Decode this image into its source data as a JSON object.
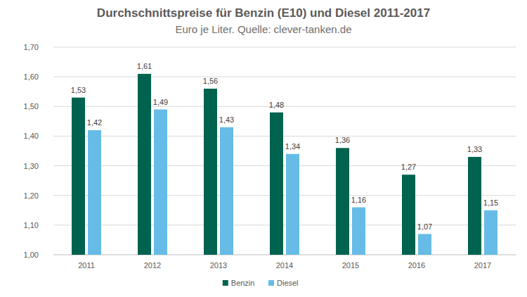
{
  "chart_data": {
    "type": "bar",
    "title": "Durchschnittspreise für Benzin (E10) und Diesel 2011-2017",
    "subtitle": "Euro je Liter. Quelle: clever-tanken.de",
    "categories": [
      "2011",
      "2012",
      "2013",
      "2014",
      "2015",
      "2016",
      "2017"
    ],
    "series": [
      {
        "name": "Benzin",
        "color": "#00634f",
        "values": [
          1.53,
          1.61,
          1.56,
          1.48,
          1.36,
          1.27,
          1.33
        ],
        "value_labels": [
          "1,53",
          "1,61",
          "1,56",
          "1,48",
          "1,36",
          "1,27",
          "1,33"
        ]
      },
      {
        "name": "Diesel",
        "color": "#66bce7",
        "values": [
          1.42,
          1.49,
          1.43,
          1.34,
          1.16,
          1.07,
          1.15
        ],
        "value_labels": [
          "1,42",
          "1,49",
          "1,43",
          "1,34",
          "1,16",
          "1,07",
          "1,15"
        ]
      }
    ],
    "ylim": [
      1.0,
      1.7
    ],
    "yticks": [
      {
        "value": 1.0,
        "label": "1,00"
      },
      {
        "value": 1.1,
        "label": "1,10"
      },
      {
        "value": 1.2,
        "label": "1,20"
      },
      {
        "value": 1.3,
        "label": "1,30"
      },
      {
        "value": 1.4,
        "label": "1,40"
      },
      {
        "value": 1.5,
        "label": "1,50"
      },
      {
        "value": 1.6,
        "label": "1,60"
      },
      {
        "value": 1.7,
        "label": "1,70"
      }
    ],
    "grid": true,
    "data_labels": true,
    "legend": "bottom"
  }
}
